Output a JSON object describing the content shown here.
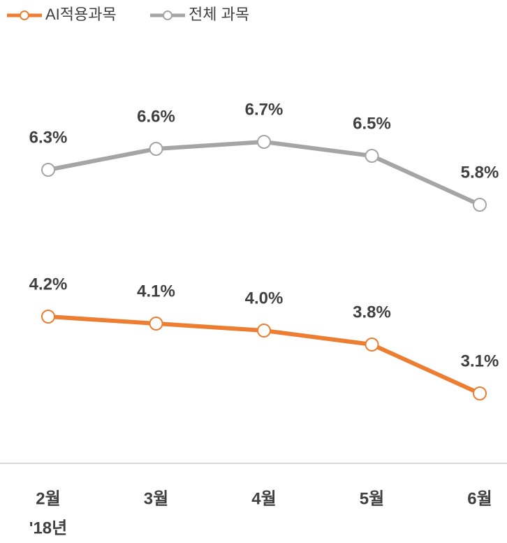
{
  "chart_data": {
    "type": "line",
    "categories": [
      "2월",
      "3월",
      "4월",
      "5월",
      "6월"
    ],
    "series": [
      {
        "name": "AI적용과목",
        "color": "#ed7d31",
        "values": [
          4.2,
          4.1,
          4.0,
          3.8,
          3.1
        ],
        "value_labels": [
          "4.2%",
          "4.1%",
          "4.0%",
          "3.8%",
          "3.1%"
        ]
      },
      {
        "name": "전체 과목",
        "color": "#a5a5a5",
        "values": [
          6.3,
          6.6,
          6.7,
          6.5,
          5.8
        ],
        "value_labels": [
          "6.3%",
          "6.6%",
          "6.7%",
          "6.5%",
          "5.8%"
        ]
      }
    ],
    "ylim": [
      2.1,
      8.4
    ],
    "annotation": "'18년",
    "legend": "top-left",
    "grid": false
  }
}
